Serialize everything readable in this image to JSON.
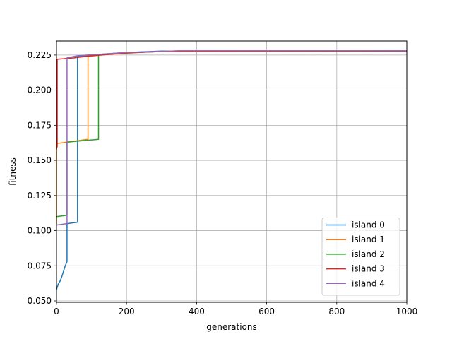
{
  "chart_data": {
    "type": "line",
    "title": "",
    "xlabel": "generations",
    "ylabel": "fitness",
    "xlim": [
      0,
      1000
    ],
    "ylim": [
      0.049,
      0.235
    ],
    "xticks": [
      0,
      200,
      400,
      600,
      800,
      1000
    ],
    "xtick_labels": [
      "0",
      "200",
      "400",
      "600",
      "800",
      "1000"
    ],
    "yticks": [
      0.05,
      0.075,
      0.1,
      0.125,
      0.15,
      0.175,
      0.2,
      0.225
    ],
    "ytick_labels": [
      "0.050",
      "0.075",
      "0.100",
      "0.125",
      "0.150",
      "0.175",
      "0.200",
      "0.225"
    ],
    "grid": true,
    "legend_position": "bottom-right",
    "series": [
      {
        "name": "island 0",
        "color": "#1f77b4",
        "x": [
          0,
          5,
          10,
          15,
          20,
          25,
          30,
          30,
          60,
          60,
          100,
          200,
          300,
          1000
        ],
        "y": [
          0.058,
          0.062,
          0.064,
          0.067,
          0.071,
          0.075,
          0.078,
          0.105,
          0.106,
          0.224,
          0.225,
          0.2268,
          0.2278,
          0.228
        ]
      },
      {
        "name": "island 1",
        "color": "#ff7f0e",
        "x": [
          0,
          0,
          30,
          90,
          90,
          150,
          250,
          350,
          1000
        ],
        "y": [
          0.105,
          0.162,
          0.163,
          0.165,
          0.224,
          0.2255,
          0.227,
          0.228,
          0.228
        ]
      },
      {
        "name": "island 2",
        "color": "#2ca02c",
        "x": [
          0,
          30,
          30,
          120,
          120,
          200,
          300,
          1000
        ],
        "y": [
          0.11,
          0.111,
          0.163,
          0.165,
          0.225,
          0.2265,
          0.2275,
          0.2278
        ]
      },
      {
        "name": "island 3",
        "color": "#d62728",
        "x": [
          0,
          2,
          2,
          50,
          100,
          200,
          300,
          1000
        ],
        "y": [
          0.158,
          0.16,
          0.222,
          0.223,
          0.2245,
          0.2265,
          0.2275,
          0.2278
        ]
      },
      {
        "name": "island 4",
        "color": "#9467bd",
        "x": [
          0,
          30,
          30,
          60,
          120,
          200,
          300,
          350,
          1000
        ],
        "y": [
          0.104,
          0.105,
          0.223,
          0.2245,
          0.2255,
          0.2268,
          0.2276,
          0.228,
          0.228
        ]
      }
    ]
  }
}
